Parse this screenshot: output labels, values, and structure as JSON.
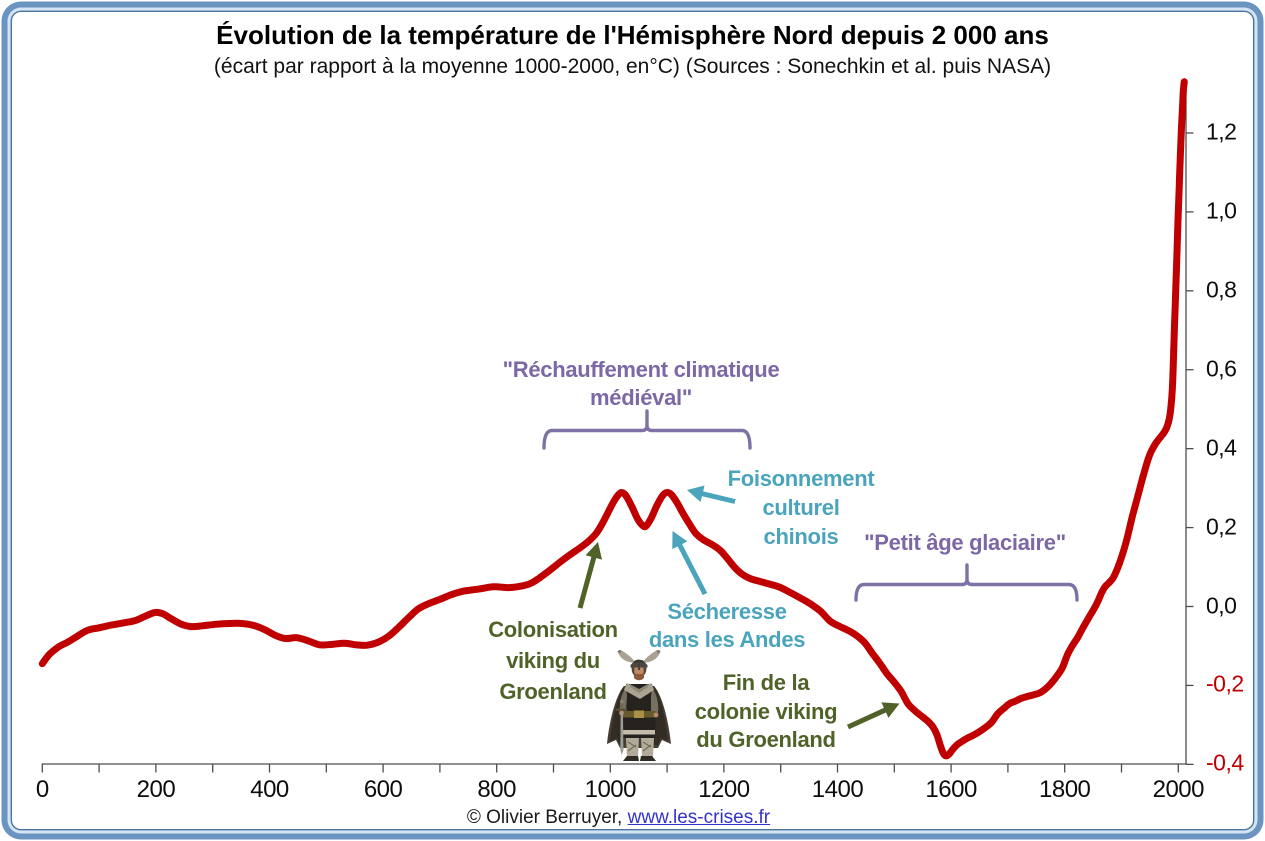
{
  "title": "Évolution de la température de l'Hémisphère Nord depuis 2 000 ans",
  "subtitle": "(écart par rapport à la moyenne 1000-2000, en°C) (Sources : Sonechkin et al. puis NASA)",
  "footer": {
    "copyright": "© Olivier Berruyer, ",
    "link_text": "www.les-crises.fr"
  },
  "colors": {
    "line": "#c00000",
    "axis": "#4d4d4d",
    "negative_label": "#c00000",
    "purple": "#7c68a4",
    "brace": "#7e72a4",
    "teal": "#4aa4bc",
    "green": "#4f6228",
    "frame_outer": "#6b94c1",
    "frame_light": "#d3e5f4",
    "frame_inner_line": "#49749e",
    "link_blue": "#3333cc"
  },
  "chart_data": {
    "type": "line",
    "title": "Évolution de la température de l'Hémisphère Nord depuis 2 000 ans",
    "subtitle": "(écart par rapport à la moyenne 1000-2000, en°C) (Sources : Sonechkin et al. puis NASA)",
    "xlabel": "",
    "ylabel": "",
    "xlim": [
      0,
      2010
    ],
    "ylim": [
      -0.4,
      1.32
    ],
    "x_tick_step_minor": 100,
    "x_tick_labels": [
      "0",
      "200",
      "400",
      "600",
      "800",
      "1000",
      "1200",
      "1400",
      "1600",
      "1800",
      "2000"
    ],
    "x_tick_label_values": [
      0,
      200,
      400,
      600,
      800,
      1000,
      1200,
      1400,
      1600,
      1800,
      2000
    ],
    "x_ticks_minor": [
      0,
      100,
      200,
      300,
      400,
      500,
      600,
      700,
      800,
      900,
      1000,
      1100,
      1200,
      1300,
      1400,
      1500,
      1600,
      1700,
      1800,
      1900,
      2000
    ],
    "y_tick_labels": [
      "-0,4",
      "-0,2",
      "0,0",
      "0,2",
      "0,4",
      "0,6",
      "0,8",
      "1,0",
      "1,2"
    ],
    "y_tick_values": [
      -0.4,
      -0.2,
      0.0,
      0.2,
      0.4,
      0.6,
      0.8,
      1.0,
      1.2
    ],
    "grid": false,
    "legend": false,
    "series": [
      {
        "name": "Température hémisphère Nord (écart à la moyenne 1000-2000, °C)",
        "points": [
          [
            0,
            -0.145
          ],
          [
            12,
            -0.122
          ],
          [
            28,
            -0.103
          ],
          [
            45,
            -0.09
          ],
          [
            62,
            -0.075
          ],
          [
            80,
            -0.06
          ],
          [
            100,
            -0.054
          ],
          [
            122,
            -0.047
          ],
          [
            145,
            -0.041
          ],
          [
            165,
            -0.035
          ],
          [
            185,
            -0.022
          ],
          [
            200,
            -0.015
          ],
          [
            213,
            -0.019
          ],
          [
            228,
            -0.032
          ],
          [
            245,
            -0.045
          ],
          [
            262,
            -0.051
          ],
          [
            282,
            -0.049
          ],
          [
            305,
            -0.045
          ],
          [
            330,
            -0.043
          ],
          [
            352,
            -0.043
          ],
          [
            372,
            -0.048
          ],
          [
            392,
            -0.059
          ],
          [
            410,
            -0.073
          ],
          [
            428,
            -0.081
          ],
          [
            448,
            -0.079
          ],
          [
            468,
            -0.087
          ],
          [
            488,
            -0.097
          ],
          [
            510,
            -0.096
          ],
          [
            532,
            -0.093
          ],
          [
            552,
            -0.097
          ],
          [
            572,
            -0.098
          ],
          [
            592,
            -0.09
          ],
          [
            610,
            -0.075
          ],
          [
            628,
            -0.052
          ],
          [
            645,
            -0.028
          ],
          [
            662,
            -0.006
          ],
          [
            680,
            0.007
          ],
          [
            700,
            0.018
          ],
          [
            722,
            0.031
          ],
          [
            742,
            0.039
          ],
          [
            768,
            0.044
          ],
          [
            795,
            0.05
          ],
          [
            822,
            0.048
          ],
          [
            848,
            0.053
          ],
          [
            862,
            0.06
          ],
          [
            875,
            0.072
          ],
          [
            890,
            0.088
          ],
          [
            905,
            0.105
          ],
          [
            920,
            0.122
          ],
          [
            935,
            0.137
          ],
          [
            950,
            0.152
          ],
          [
            963,
            0.167
          ],
          [
            975,
            0.185
          ],
          [
            986,
            0.21
          ],
          [
            996,
            0.238
          ],
          [
            1005,
            0.263
          ],
          [
            1013,
            0.281
          ],
          [
            1020,
            0.289
          ],
          [
            1028,
            0.28
          ],
          [
            1038,
            0.253
          ],
          [
            1048,
            0.222
          ],
          [
            1057,
            0.205
          ],
          [
            1063,
            0.204
          ],
          [
            1072,
            0.224
          ],
          [
            1082,
            0.256
          ],
          [
            1092,
            0.281
          ],
          [
            1100,
            0.289
          ],
          [
            1108,
            0.283
          ],
          [
            1118,
            0.262
          ],
          [
            1128,
            0.236
          ],
          [
            1138,
            0.212
          ],
          [
            1150,
            0.186
          ],
          [
            1163,
            0.17
          ],
          [
            1178,
            0.158
          ],
          [
            1193,
            0.143
          ],
          [
            1206,
            0.122
          ],
          [
            1219,
            0.099
          ],
          [
            1232,
            0.082
          ],
          [
            1246,
            0.071
          ],
          [
            1262,
            0.064
          ],
          [
            1280,
            0.057
          ],
          [
            1298,
            0.049
          ],
          [
            1316,
            0.036
          ],
          [
            1334,
            0.022
          ],
          [
            1352,
            0.007
          ],
          [
            1370,
            -0.012
          ],
          [
            1387,
            -0.037
          ],
          [
            1403,
            -0.05
          ],
          [
            1418,
            -0.06
          ],
          [
            1433,
            -0.073
          ],
          [
            1448,
            -0.092
          ],
          [
            1461,
            -0.118
          ],
          [
            1474,
            -0.143
          ],
          [
            1487,
            -0.17
          ],
          [
            1500,
            -0.192
          ],
          [
            1512,
            -0.215
          ],
          [
            1524,
            -0.246
          ],
          [
            1537,
            -0.265
          ],
          [
            1550,
            -0.28
          ],
          [
            1560,
            -0.292
          ],
          [
            1568,
            -0.305
          ],
          [
            1575,
            -0.325
          ],
          [
            1581,
            -0.352
          ],
          [
            1586,
            -0.371
          ],
          [
            1590,
            -0.378
          ],
          [
            1594,
            -0.377
          ],
          [
            1599,
            -0.37
          ],
          [
            1604,
            -0.36
          ],
          [
            1611,
            -0.35
          ],
          [
            1619,
            -0.342
          ],
          [
            1628,
            -0.334
          ],
          [
            1638,
            -0.327
          ],
          [
            1649,
            -0.318
          ],
          [
            1660,
            -0.307
          ],
          [
            1671,
            -0.294
          ],
          [
            1682,
            -0.272
          ],
          [
            1693,
            -0.258
          ],
          [
            1703,
            -0.246
          ],
          [
            1713,
            -0.24
          ],
          [
            1723,
            -0.233
          ],
          [
            1734,
            -0.228
          ],
          [
            1745,
            -0.224
          ],
          [
            1756,
            -0.219
          ],
          [
            1766,
            -0.209
          ],
          [
            1776,
            -0.195
          ],
          [
            1786,
            -0.177
          ],
          [
            1796,
            -0.155
          ],
          [
            1805,
            -0.122
          ],
          [
            1814,
            -0.098
          ],
          [
            1823,
            -0.078
          ],
          [
            1832,
            -0.054
          ],
          [
            1842,
            -0.029
          ],
          [
            1852,
            -0.005
          ],
          [
            1859,
            0.015
          ],
          [
            1865,
            0.035
          ],
          [
            1871,
            0.05
          ],
          [
            1878,
            0.06
          ],
          [
            1885,
            0.072
          ],
          [
            1891,
            0.09
          ],
          [
            1897,
            0.112
          ],
          [
            1903,
            0.138
          ],
          [
            1909,
            0.168
          ],
          [
            1914,
            0.198
          ],
          [
            1919,
            0.228
          ],
          [
            1925,
            0.26
          ],
          [
            1931,
            0.292
          ],
          [
            1937,
            0.325
          ],
          [
            1943,
            0.355
          ],
          [
            1948,
            0.378
          ],
          [
            1953,
            0.395
          ],
          [
            1958,
            0.408
          ],
          [
            1963,
            0.419
          ],
          [
            1969,
            0.43
          ],
          [
            1975,
            0.441
          ],
          [
            1980,
            0.455
          ],
          [
            1984,
            0.475
          ],
          [
            1987,
            0.505
          ],
          [
            1989.5,
            0.55
          ],
          [
            1991.5,
            0.63
          ],
          [
            1993.5,
            0.72
          ],
          [
            1995.5,
            0.8
          ],
          [
            1997.5,
            0.89
          ],
          [
            1999.5,
            0.98
          ],
          [
            2001.5,
            1.06
          ],
          [
            2003.5,
            1.14
          ],
          [
            2005.5,
            1.21
          ],
          [
            2007.5,
            1.27
          ],
          [
            2009,
            1.31
          ],
          [
            2010.5,
            1.33
          ]
        ]
      }
    ],
    "annotations": [
      {
        "id": "rechauffement",
        "lines": [
          "\"Réchauffement climatique",
          "médiéval\""
        ],
        "color_key": "purple"
      },
      {
        "id": "foisonnement",
        "lines": [
          "Foisonnement",
          "culturel",
          "chinois"
        ],
        "color_key": "teal"
      },
      {
        "id": "secheresse",
        "lines": [
          "Sécheresse",
          "dans les Andes"
        ],
        "color_key": "teal"
      },
      {
        "id": "colonisation",
        "lines": [
          "Colonisation",
          "viking du",
          "Groenland"
        ],
        "color_key": "green"
      },
      {
        "id": "fin-colonie",
        "lines": [
          "Fin de la",
          "colonie viking",
          "du Groenland"
        ],
        "color_key": "green"
      },
      {
        "id": "petit-age",
        "lines": [
          "\"Petit âge glaciaire\""
        ],
        "color_key": "purple"
      }
    ]
  }
}
